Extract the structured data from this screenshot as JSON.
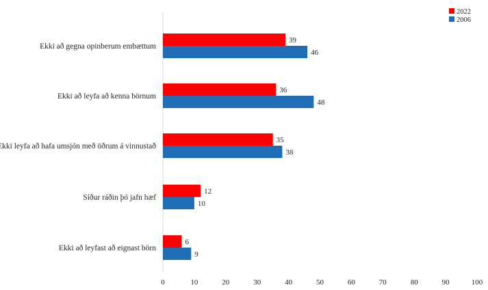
{
  "chart_data": {
    "type": "bar",
    "orientation": "horizontal",
    "categories": [
      "Ekki að gegna opinberum embættum",
      "Ekki að leyfa að kenna börnum",
      "Ekki leyfa að hafa umsjón með öðrum á vinnustað",
      "Síður ráðin þó jafn hæf",
      "Ekki að leyfast að eignast börn"
    ],
    "series": [
      {
        "name": "2022",
        "color": "#ff0000",
        "values": [
          39,
          36,
          35,
          12,
          6
        ]
      },
      {
        "name": "2006",
        "color": "#1f6eb5",
        "values": [
          46,
          48,
          38,
          10,
          9
        ]
      }
    ],
    "xlim": [
      0,
      100
    ],
    "xticks": [
      0,
      10,
      20,
      30,
      40,
      50,
      60,
      70,
      80,
      90,
      100
    ],
    "grid": false,
    "legend_position": "top-right",
    "data_labels": true,
    "title": "",
    "xlabel": "",
    "ylabel": ""
  }
}
